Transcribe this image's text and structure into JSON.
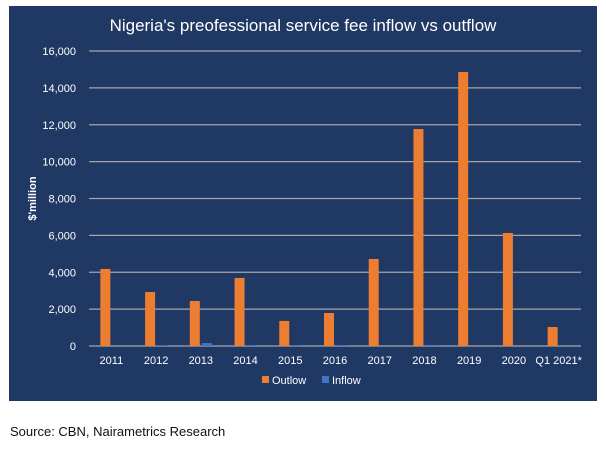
{
  "chart_data": {
    "type": "bar",
    "title": "Nigeria's preofessional service fee inflow  vs outflow",
    "xlabel": "",
    "ylabel": "$'million",
    "ylim": [
      0,
      16000
    ],
    "yticks": [
      0,
      2000,
      4000,
      6000,
      8000,
      10000,
      12000,
      14000,
      16000
    ],
    "ytick_labels": [
      "0",
      "2,000",
      "4,000",
      "6,000",
      "8,000",
      "10,000",
      "12,000",
      "14,000",
      "16,000"
    ],
    "grid": true,
    "legend_position": "bottom-center",
    "categories": [
      "2011",
      "2012",
      "2013",
      "2014",
      "2015",
      "2016",
      "2017",
      "2018",
      "2019",
      "2020",
      "Q1 2021*"
    ],
    "series": [
      {
        "name": "Outlow",
        "color": "#ed7d31",
        "values": [
          4180,
          2930,
          2440,
          3690,
          1360,
          1790,
          4720,
          11770,
          14860,
          6130,
          1030
        ]
      },
      {
        "name": "Inflow",
        "color": "#4472c4",
        "values": [
          0,
          40,
          160,
          50,
          50,
          50,
          0,
          60,
          0,
          0,
          0
        ]
      }
    ]
  },
  "colors": {
    "background": "#1f3864",
    "gridline": "#a6a6a6",
    "text": "#ffffff"
  },
  "source": "Source: CBN, Nairametrics Research"
}
